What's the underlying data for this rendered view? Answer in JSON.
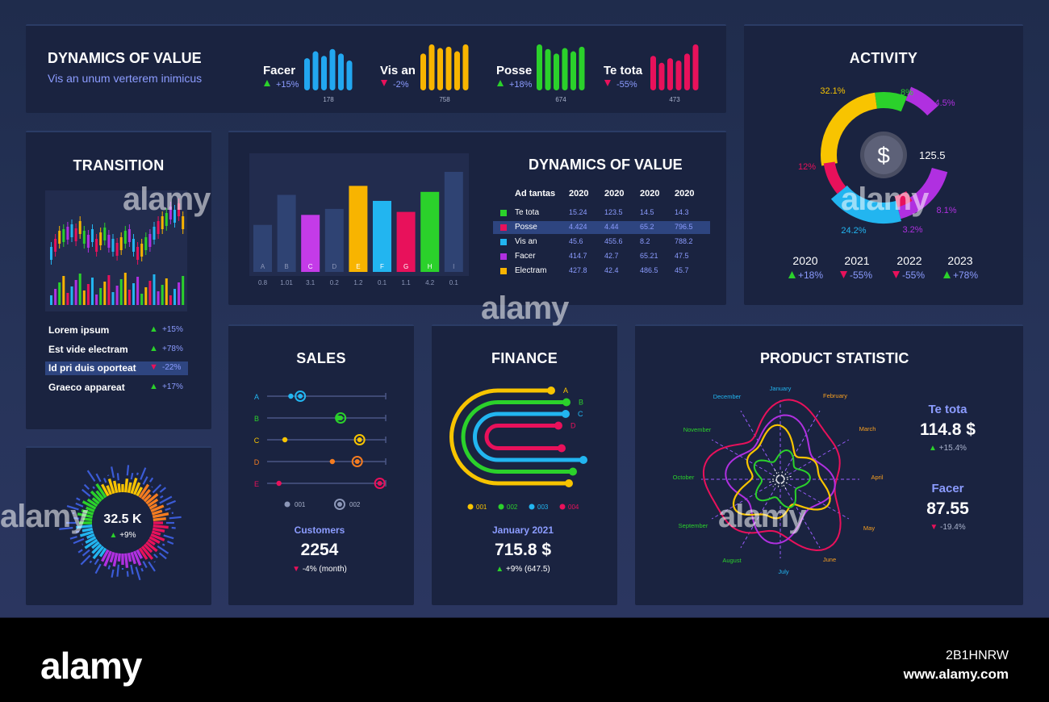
{
  "header_panel": {
    "title": "DYNAMICS OF VALUE",
    "subtitle": "Vis an unum verterem inimicus",
    "metrics": [
      {
        "name": "Facer",
        "change": "+15%",
        "dir": "up",
        "value": "178",
        "color": "#22a7f0",
        "bars": [
          0.7,
          0.85,
          0.75,
          0.9,
          0.8,
          0.65
        ]
      },
      {
        "name": "Vis an",
        "change": "-2%",
        "dir": "down",
        "value": "758",
        "color": "#f8b400",
        "bars": [
          0.8,
          1.0,
          0.92,
          0.95,
          0.85,
          1.0
        ]
      },
      {
        "name": "Posse",
        "change": "+18%",
        "dir": "up",
        "value": "674",
        "color": "#2bd12b",
        "bars": [
          1.0,
          0.9,
          0.8,
          0.92,
          0.85,
          0.95
        ]
      },
      {
        "name": "Te tota",
        "change": "-55%",
        "dir": "down",
        "value": "473",
        "color": "#e8115b",
        "bars": [
          0.75,
          0.6,
          0.7,
          0.65,
          0.8,
          1.0
        ]
      }
    ]
  },
  "activity": {
    "title": "ACTIVITY",
    "center_value": "125.5",
    "center_icon": "dollar-icon",
    "segments": [
      {
        "label": "32.1%",
        "value": 32.1,
        "color": "#f8c400"
      },
      {
        "label": "8%",
        "value": 8,
        "color": "#2bd12b"
      },
      {
        "label": "4.5%",
        "value": 4.5,
        "color": "#b030e0"
      },
      {
        "label": "8.1%",
        "value": 8.1,
        "color": "#b030e0"
      },
      {
        "label": "3.2%",
        "value": 3.2,
        "color": "#e8115b"
      },
      {
        "label": "24.2%",
        "value": 24.2,
        "color": "#22b5f0"
      },
      {
        "label": "12%",
        "value": 12,
        "color": "#e8115b"
      }
    ],
    "years": [
      {
        "year": "2020",
        "change": "+18%",
        "dir": "up"
      },
      {
        "year": "2021",
        "change": "-55%",
        "dir": "down"
      },
      {
        "year": "2022",
        "change": "-55%",
        "dir": "down"
      },
      {
        "year": "2023",
        "change": "+78%",
        "dir": "up"
      }
    ]
  },
  "transition": {
    "title": "TRANSITION",
    "items": [
      {
        "label": "Lorem ipsum",
        "change": "+15%",
        "dir": "up",
        "selected": false
      },
      {
        "label": "Est vide electram",
        "change": "+78%",
        "dir": "up",
        "selected": false
      },
      {
        "label": "Id pri duis oporteat",
        "change": "-22%",
        "dir": "down",
        "selected": true
      },
      {
        "label": "Graeco appareat",
        "change": "+17%",
        "dir": "up",
        "selected": false
      }
    ]
  },
  "dynamics": {
    "title": "DYNAMICS OF VALUE",
    "table": {
      "headers": [
        "Ad tantas",
        "2020",
        "2020",
        "2020",
        "2020"
      ],
      "rows": [
        {
          "name": "Te tota",
          "color": "#2bd12b",
          "values": [
            "15.24",
            "123.5",
            "14.5",
            "14.3"
          ],
          "selected": false
        },
        {
          "name": "Posse",
          "color": "#e8115b",
          "values": [
            "4.424",
            "4.44",
            "65.2",
            "796.5"
          ],
          "selected": true
        },
        {
          "name": "Vis an",
          "color": "#22b5f0",
          "values": [
            "45.6",
            "455.6",
            "8.2",
            "788.2"
          ],
          "selected": false
        },
        {
          "name": "Facer",
          "color": "#b030e0",
          "values": [
            "414.7",
            "42.7",
            "65.21",
            "47.5"
          ],
          "selected": false
        },
        {
          "name": "Electram",
          "color": "#f8b400",
          "values": [
            "427.8",
            "42.4",
            "486.5",
            "45.7"
          ],
          "selected": false
        }
      ]
    }
  },
  "chart_data": {
    "type": "bar",
    "categories": [
      "A",
      "B",
      "C",
      "D",
      "E",
      "F",
      "G",
      "H",
      "I"
    ],
    "values": [
      0.8,
      1.01,
      3.1,
      0.2,
      1.2,
      0.1,
      1.1,
      4.2,
      0.1
    ],
    "value_labels": [
      "0.8",
      "1.01",
      "3.1",
      "0.2",
      "1.2",
      "0.1",
      "1.1",
      "4.2",
      "0.1"
    ],
    "relative_heights": [
      0.47,
      0.77,
      0.57,
      0.63,
      0.86,
      0.71,
      0.6,
      0.8,
      1.0
    ],
    "colors": [
      "#2f4373",
      "#2f4373",
      "#c43be8",
      "#2f4373",
      "#f8b400",
      "#22b5f0",
      "#e8115b",
      "#2bd12b",
      "#2f4373"
    ]
  },
  "sales": {
    "title": "SALES",
    "rows": [
      "A",
      "B",
      "C",
      "D",
      "E"
    ],
    "row_colors": [
      "#22b5f0",
      "#2bd12b",
      "#f8c400",
      "#f57c20",
      "#e8115b"
    ],
    "points_001": [
      0.2,
      0.6,
      0.15,
      0.55,
      0.1
    ],
    "points_002": [
      0.28,
      0.62,
      0.78,
      0.76,
      0.95
    ],
    "legend": [
      "001",
      "002"
    ],
    "label": "Customers",
    "value": "2254",
    "change": "-4% (month)",
    "dir": "down"
  },
  "finance": {
    "title": "FINANCE",
    "arcs": [
      {
        "label": "A",
        "color": "#f8c400"
      },
      {
        "label": "B",
        "color": "#2bd12b"
      },
      {
        "label": "C",
        "color": "#22b5f0"
      },
      {
        "label": "D",
        "color": "#e8115b"
      }
    ],
    "legend": [
      {
        "label": "001",
        "color": "#f8c400"
      },
      {
        "label": "002",
        "color": "#2bd12b"
      },
      {
        "label": "003",
        "color": "#22b5f0"
      },
      {
        "label": "004",
        "color": "#e8115b"
      }
    ],
    "label": "January 2021",
    "value": "715.8 $",
    "change": "+9% (647.5)",
    "dir": "up"
  },
  "product_statistic": {
    "title": "PRODUCT STATISTIC",
    "months": [
      "January",
      "February",
      "March",
      "April",
      "May",
      "June",
      "July",
      "August",
      "September",
      "October",
      "November",
      "December"
    ],
    "stats": [
      {
        "name": "Te tota",
        "value": "114.8 $",
        "change": "+15.4%",
        "dir": "up"
      },
      {
        "name": "Facer",
        "value": "87.55",
        "change": "-19.4%",
        "dir": "down"
      }
    ]
  },
  "radial": {
    "value": "32.5 K",
    "change": "+9%",
    "dir": "up"
  },
  "colors": {
    "up": "#2bd12b",
    "down": "#e8115b",
    "accent": "#7b8cff",
    "panel": "#1a2340"
  },
  "watermark": {
    "brand": "alamy",
    "stock_id": "2B1HNRW",
    "url": "www.alamy.com"
  }
}
